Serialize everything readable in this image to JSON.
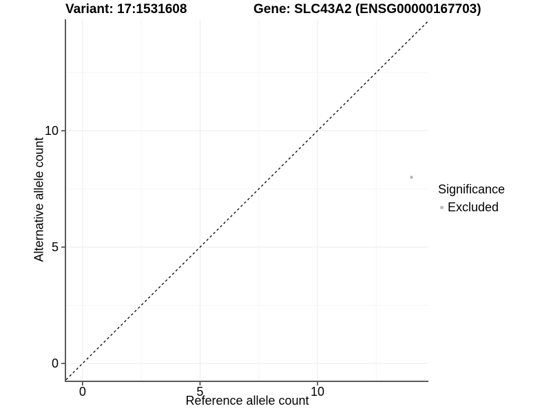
{
  "header": {
    "title_left": "Variant: 17:1531608",
    "title_right": "Gene: SLC43A2 (ENSG00000167703)"
  },
  "chart_data": {
    "type": "scatter",
    "xlabel": "Reference allele count",
    "ylabel": "Alternative allele count",
    "xlim": [
      -0.7,
      14.72
    ],
    "ylim": [
      -0.74,
      14.79
    ],
    "x_ticks": [
      0,
      5,
      10
    ],
    "y_ticks": [
      0,
      5,
      10
    ],
    "x_minor_ticks": [
      2.5,
      7.5,
      12.5
    ],
    "y_minor_ticks": [
      2.5,
      7.5,
      12.5
    ],
    "grid": true,
    "identity_line": {
      "equation": "y = x",
      "style": "dashed",
      "color": "#000000"
    },
    "series": [
      {
        "name": "Excluded",
        "color": "#b9b9b9",
        "points": [
          {
            "x": 14,
            "y": 8
          }
        ]
      }
    ],
    "legend": {
      "title": "Significance",
      "position": "right",
      "items": [
        {
          "label": "Excluded",
          "color": "#b9b9b9"
        }
      ]
    }
  },
  "colors": {
    "background": "#ffffff",
    "grid_major": "#ebebeb",
    "grid_minor": "#f5f5f5",
    "axis_line": "#595959",
    "tick_mark": "#333333",
    "text": "#000000"
  }
}
